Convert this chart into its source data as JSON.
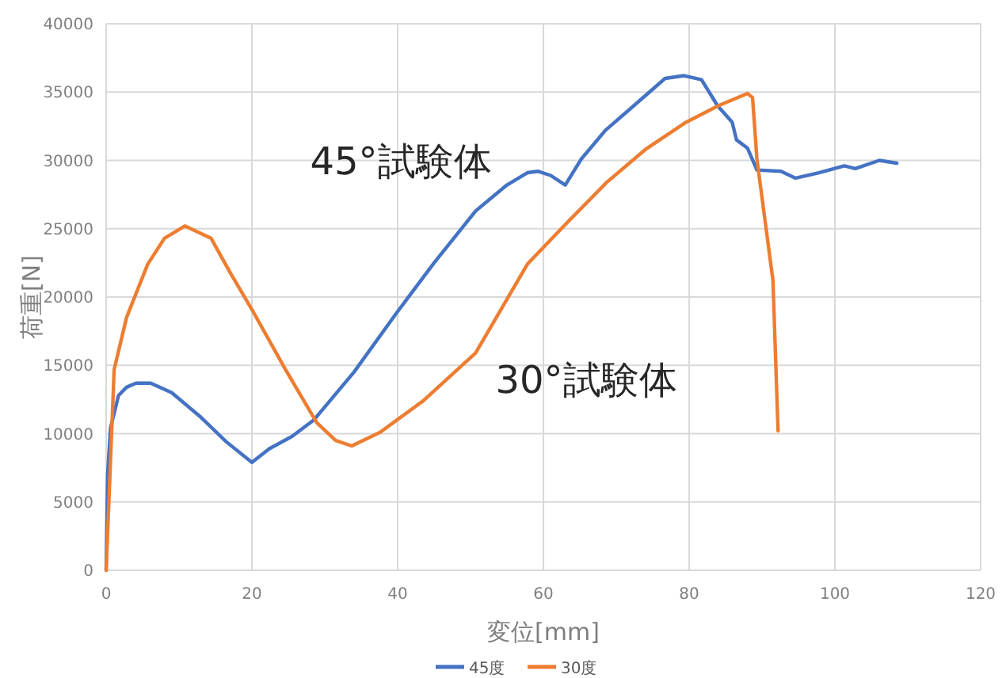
{
  "chart_data": {
    "type": "line",
    "xlabel": "変位[mm]",
    "ylabel": "荷重[N]",
    "xlim": [
      0,
      120
    ],
    "xticks": [
      0,
      20,
      40,
      60,
      80,
      100,
      120
    ],
    "ylim": [
      0,
      40000
    ],
    "yticks": [
      0,
      5000,
      10000,
      15000,
      20000,
      25000,
      30000,
      35000,
      40000
    ],
    "grid": true,
    "legend": "bottom",
    "marker": "none",
    "line_style": "solid",
    "series": [
      {
        "name": "45度",
        "color": "#4472c4",
        "x": [
          0,
          0.2,
          0.6,
          1.7,
          2.8,
          4.1,
          6.1,
          9,
          13,
          16.5,
          20,
          22.4,
          25.5,
          28.5,
          34,
          39.8,
          45,
          50.7,
          55,
          57.8,
          59.3,
          61,
          63,
          65.2,
          68.5,
          72.4,
          76.7,
          79.3,
          81.7,
          83.9,
          85.9,
          86.5,
          88,
          89.3,
          92.6,
          94.6,
          97.8,
          101.3,
          102.8,
          106.1,
          108.5
        ],
        "values": [
          0,
          7000,
          10400,
          12800,
          13400,
          13700,
          13700,
          13000,
          11200,
          9400,
          7900,
          8900,
          9800,
          11000,
          14500,
          18800,
          22500,
          26300,
          28200,
          29100,
          29200,
          28900,
          28200,
          30100,
          32200,
          34000,
          36000,
          36200,
          35900,
          34000,
          32800,
          31500,
          30900,
          29300,
          29200,
          28700,
          29100,
          29600,
          29400,
          30000,
          29800
        ]
      },
      {
        "name": "30度",
        "color": "#ed7d31",
        "x": [
          0,
          1.1,
          2.8,
          5.7,
          8,
          10.8,
          14.4,
          17,
          20.2,
          24.6,
          28.9,
          31.5,
          33.7,
          37.6,
          43.5,
          50.7,
          57.8,
          63,
          68.7,
          74,
          79.6,
          84,
          88,
          88.7,
          89.3,
          91.5,
          92.2
        ],
        "values": [
          0,
          14700,
          18500,
          22400,
          24300,
          25200,
          24300,
          21800,
          18900,
          14700,
          10800,
          9500,
          9100,
          10100,
          12400,
          15900,
          22400,
          25300,
          28400,
          30800,
          32800,
          34000,
          34900,
          34600,
          30100,
          21200,
          10200
        ]
      }
    ],
    "annotations": [
      "45°試験体",
      "30°試験体"
    ]
  }
}
